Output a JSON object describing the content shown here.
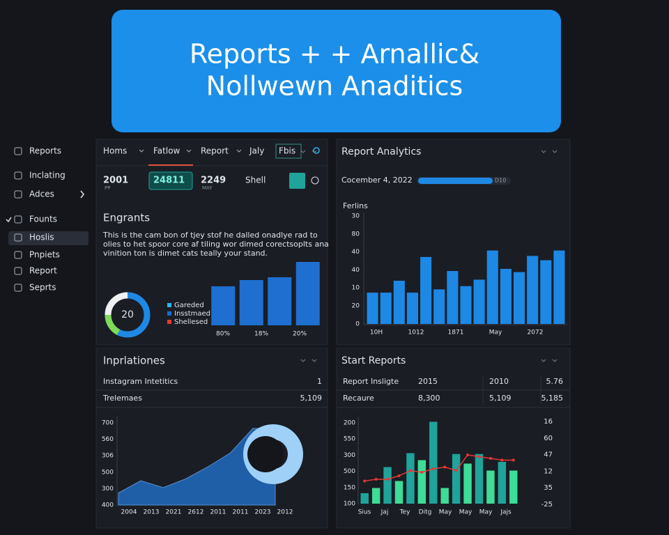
{
  "header": {
    "title_lines": [
      "Reports + + Arnallic&",
      "Nollwewn Anaditics"
    ]
  },
  "sidebar": {
    "items": [
      "Reports",
      "Inclating",
      "Adces",
      "Founts",
      "Hoslis",
      "Pnpiets",
      "Report",
      "Seprts"
    ]
  },
  "tabs": [
    "Homs",
    "Fatlow",
    "Report",
    "Jaly",
    "Fbis"
  ],
  "stats": [
    {
      "value": "2001",
      "sub": "PP"
    },
    {
      "value": "24811"
    },
    {
      "value": "2249",
      "sub": "MAY"
    },
    {
      "value": "Shell"
    }
  ],
  "engrants": {
    "title": "Engrants",
    "text_lines": [
      "This is the cam bon of tjey stof he dalled onadlye rad to",
      "olies to het spoor core af tiling wor dimed corectsoplts ana",
      "vinition ton is dimet cats teally your stand."
    ],
    "donut_label": "20",
    "legend": [
      {
        "name": "Gareded",
        "color": "#29b6f6"
      },
      {
        "name": "Insstmaed",
        "color": "#1e6bd6"
      },
      {
        "name": "Shellesed",
        "color": "#e53935"
      }
    ],
    "chart": {
      "type": "bar",
      "ylim": [
        0,
        100
      ],
      "values": [
        56,
        65,
        69,
        91
      ],
      "categories": [
        "80%",
        "18%",
        "20%",
        null
      ],
      "color": "#1e6fd0"
    }
  },
  "analytics": {
    "title": "Report Analytics",
    "date": "Cocember 4, 2022",
    "progress_label": "D10",
    "chart": {
      "type": "bar",
      "label": "Ferlins",
      "ylim": [
        0,
        100
      ],
      "y_labels": [
        "30",
        "80",
        "40",
        "40",
        "10",
        "20",
        "0"
      ],
      "values": [
        29,
        29,
        40,
        29,
        62,
        32,
        49,
        35,
        41,
        68,
        51,
        48,
        63,
        59,
        68
      ],
      "x_labels": [
        "10H",
        "1012",
        "1871",
        "May",
        "2072"
      ],
      "color": "#1e88e5"
    }
  },
  "inprlationes": {
    "title": "Inprlationes",
    "rows": [
      [
        "Instagram Intetitics",
        "1"
      ],
      [
        "Trelemaes",
        "5,109"
      ]
    ],
    "chart": {
      "type": "area",
      "ylim": [
        0,
        100
      ],
      "y_labels": [
        "700",
        "560",
        "306",
        "500",
        "300",
        "400"
      ],
      "values": [
        14,
        28,
        20,
        30,
        44,
        60,
        88,
        88
      ],
      "x_labels": [
        "2004",
        "2013",
        "2021",
        "2612",
        "2011",
        "2011",
        "2023",
        "2012"
      ],
      "color": "#1f5fa8"
    }
  },
  "start_reports": {
    "title": "Start Reports",
    "rows": [
      [
        "Report Insligte",
        "2015",
        "2010",
        "5.76"
      ],
      [
        "Recaure",
        "8,300",
        "5,109",
        "5,185"
      ]
    ],
    "chart": {
      "type": "combo",
      "ylim": [
        0,
        100
      ],
      "y_labels": [
        "200",
        "550",
        "300",
        "500",
        "150",
        "100"
      ],
      "y2_labels": [
        "16",
        "60",
        "47",
        "12",
        "35",
        "-25"
      ],
      "bars": [
        12,
        18,
        42,
        26,
        58,
        50,
        94,
        18,
        57,
        46,
        57,
        38,
        48,
        38
      ],
      "bar_colors": [
        "#1fa39a",
        "#3ddc97"
      ],
      "line": [
        26,
        28,
        28,
        32,
        38,
        36,
        40,
        42,
        38,
        56,
        54,
        52,
        50,
        50
      ],
      "line_color": "#e53935",
      "x_labels": [
        "Sius",
        "Jaj",
        "Tey",
        "Ditg",
        "May",
        "May",
        "May",
        "Jajs"
      ]
    }
  }
}
